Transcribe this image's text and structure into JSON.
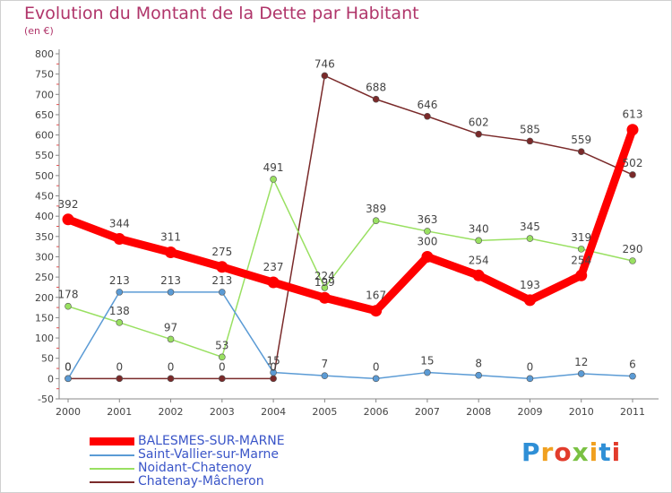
{
  "header": {
    "title": "Evolution du Montant de la Dette par Habitant",
    "unit": "(en €)"
  },
  "logo": {
    "text": "Proxiti",
    "colors": [
      "#2f8fd6",
      "#f0a020",
      "#e23c2c",
      "#7ac143",
      "#f0a020",
      "#2f8fd6",
      "#e23c2c"
    ]
  },
  "chart_data": {
    "type": "line",
    "x": [
      "2000",
      "2001",
      "2002",
      "2003",
      "2004",
      "2005",
      "2006",
      "2007",
      "2008",
      "2009",
      "2010",
      "2011"
    ],
    "ylim": [
      -50,
      800
    ],
    "yticks": [
      -50,
      0,
      50,
      100,
      150,
      200,
      250,
      300,
      350,
      400,
      450,
      500,
      550,
      600,
      650,
      700,
      750,
      800
    ],
    "grid": false,
    "legend_position": "bottom-left",
    "series": [
      {
        "name": "BALESMES-SUR-MARNE",
        "color": "#ff0000",
        "values": [
          392,
          344,
          311,
          275,
          237,
          199,
          167,
          300,
          254,
          193,
          254,
          613
        ],
        "labels": [
          "392",
          "344",
          "311",
          "275",
          "237",
          "199",
          "167",
          "300",
          "254",
          "193",
          "254",
          "613"
        ]
      },
      {
        "name": "Saint-Vallier-sur-Marne",
        "color": "#5b9bd5",
        "values": [
          0,
          213,
          213,
          213,
          15,
          7,
          0,
          15,
          8,
          0,
          12,
          6
        ],
        "labels": [
          "0",
          "213",
          "213",
          "213",
          "15",
          "7",
          "0",
          "15",
          "8",
          "0",
          "12",
          "6"
        ]
      },
      {
        "name": "Noidant-Chatenoy",
        "color": "#99e061",
        "values": [
          178,
          138,
          97,
          53,
          491,
          224,
          389,
          363,
          340,
          345,
          319,
          290
        ],
        "labels": [
          "178",
          "138",
          "97",
          "53",
          "491",
          "224",
          "389",
          "363",
          "340",
          "345",
          "319",
          "290"
        ]
      },
      {
        "name": "Chatenay-Mâcheron",
        "color": "#7a2a2a",
        "values": [
          0,
          0,
          0,
          0,
          0,
          746,
          688,
          646,
          602,
          585,
          559,
          502
        ],
        "labels": [
          "0",
          "0",
          "0",
          "0",
          "0",
          "746",
          "688",
          "646",
          "602",
          "585",
          "559",
          "502"
        ]
      }
    ]
  }
}
